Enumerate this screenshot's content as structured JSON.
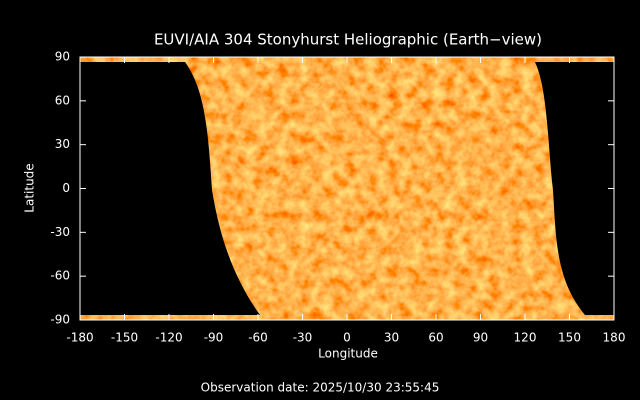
{
  "chart_data": {
    "type": "map",
    "title": "EUVI/AIA 304 Stonyhurst Heliographic (Earth−view)",
    "xlabel": "Longitude",
    "ylabel": "Latitude",
    "annotation": "Observation date: 2025/10/30 23:55:45",
    "xlim": [
      -180,
      180
    ],
    "ylim": [
      -90,
      90
    ],
    "xticks": [
      -180,
      -150,
      -120,
      -90,
      -60,
      -30,
      0,
      30,
      60,
      90,
      120,
      150,
      180
    ],
    "yticks": [
      -90,
      -60,
      -30,
      0,
      30,
      60,
      90
    ]
  }
}
